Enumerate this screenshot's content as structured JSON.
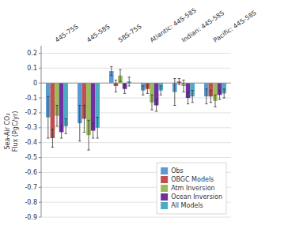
{
  "chart_data": {
    "type": "bar",
    "ylabel": "Sea-Air CO₂\nFlux (PgC/yr)",
    "categories": [
      "445-75S",
      "445-58S",
      "58S-75S",
      "Atlantic: 44S-58S",
      "Indian: 44S-58S",
      "Pacific: 44S-58S"
    ],
    "series": [
      {
        "name": "Obs",
        "color": "#5B9BD5",
        "values": [
          -0.23,
          -0.27,
          0.08,
          -0.05,
          -0.06,
          -0.09
        ],
        "errors": [
          0.14,
          0.12,
          0.03,
          0.03,
          0.09,
          0.05
        ]
      },
      {
        "name": "OBGC Models",
        "color": "#C0504D",
        "values": [
          -0.37,
          -0.24,
          -0.02,
          -0.04,
          0.01,
          -0.09
        ],
        "errors": [
          0.06,
          0.09,
          0.04,
          0.03,
          0.02,
          0.04
        ]
      },
      {
        "name": "Atm Inversion",
        "color": "#9BBB59",
        "values": [
          -0.22,
          -0.35,
          0.05,
          -0.13,
          -0.02,
          -0.12
        ],
        "errors": [
          0.07,
          0.1,
          0.04,
          0.05,
          0.04,
          0.04
        ]
      },
      {
        "name": "Ocean Inversion",
        "color": "#7030A0",
        "values": [
          -0.33,
          -0.32,
          -0.04,
          -0.15,
          -0.1,
          -0.08
        ],
        "errors": [
          0.04,
          0.05,
          0.03,
          0.04,
          0.04,
          0.03
        ]
      },
      {
        "name": "All Models",
        "color": "#4BACC6",
        "values": [
          -0.29,
          -0.3,
          0.01,
          -0.05,
          -0.09,
          -0.07
        ],
        "errors": [
          0.05,
          0.07,
          0.03,
          0.03,
          0.04,
          0.03
        ]
      }
    ],
    "ylim": [
      -0.9,
      0.25
    ],
    "yticks": [
      0.2,
      0.1,
      0.0,
      -0.1,
      -0.2,
      -0.3,
      -0.4,
      -0.5,
      -0.6,
      -0.7,
      -0.8,
      -0.9
    ],
    "grid": true,
    "legend": "lower right"
  }
}
